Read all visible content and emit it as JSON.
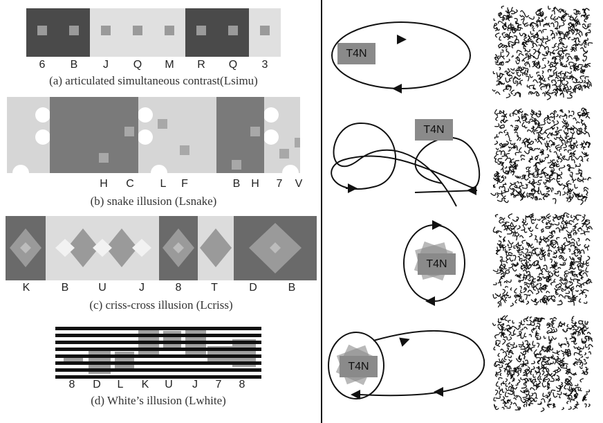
{
  "panels": [
    {
      "letters": [
        "6",
        "B",
        "J",
        "Q",
        "M",
        "R",
        "Q",
        "3"
      ],
      "caption": "(a) articulated simultaneous contrast(Lsimu)"
    },
    {
      "letters": [
        "H",
        "C",
        "L",
        "F",
        "B",
        "H",
        "7",
        "V"
      ],
      "caption": "(b) snake illusion (Lsnake)"
    },
    {
      "letters": [
        "K",
        "B",
        "U",
        "J",
        "8",
        "T",
        "D",
        "B"
      ],
      "caption": "(c) criss-cross illusion (Lcriss)"
    },
    {
      "letters": [
        "8",
        "D",
        "L",
        "K",
        "U",
        "J",
        "7",
        "8"
      ],
      "caption": "(d) White’s illusion (Lwhite)"
    }
  ],
  "motion": [
    {
      "label": "T4N"
    },
    {
      "label": "T4N"
    },
    {
      "label": "T4N"
    },
    {
      "label": "T4N"
    }
  ]
}
